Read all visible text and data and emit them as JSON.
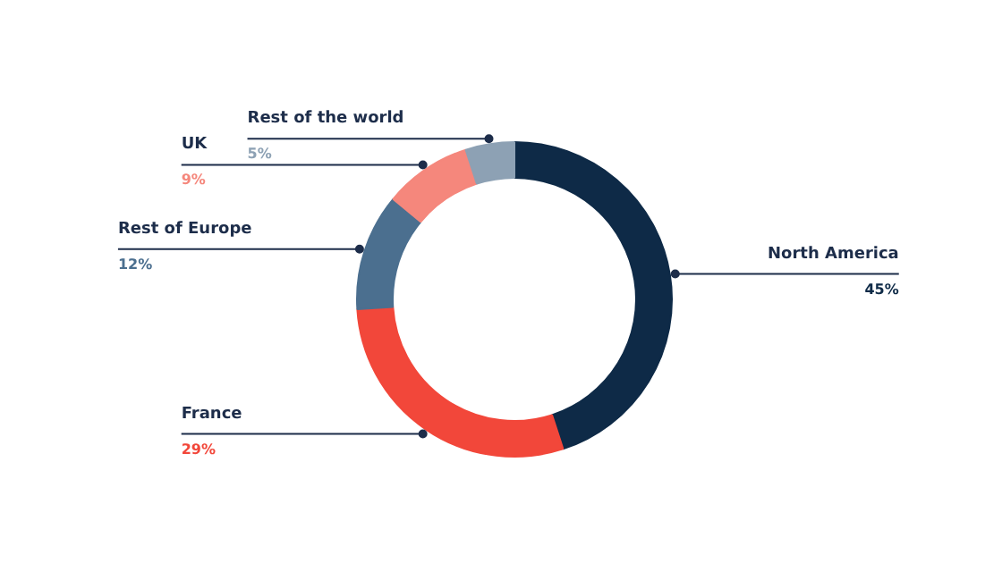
{
  "chart_data": {
    "type": "donut",
    "categories": [
      "North America",
      "France",
      "Rest of Europe",
      "UK",
      "Rest of the world"
    ],
    "values": [
      45,
      29,
      12,
      9,
      5
    ],
    "value_labels": [
      "45%",
      "29%",
      "12%",
      "9%",
      "5%"
    ],
    "colors": [
      "#0e2a47",
      "#f2473a",
      "#4b6f8f",
      "#f5877c",
      "#8da1b4"
    ]
  }
}
